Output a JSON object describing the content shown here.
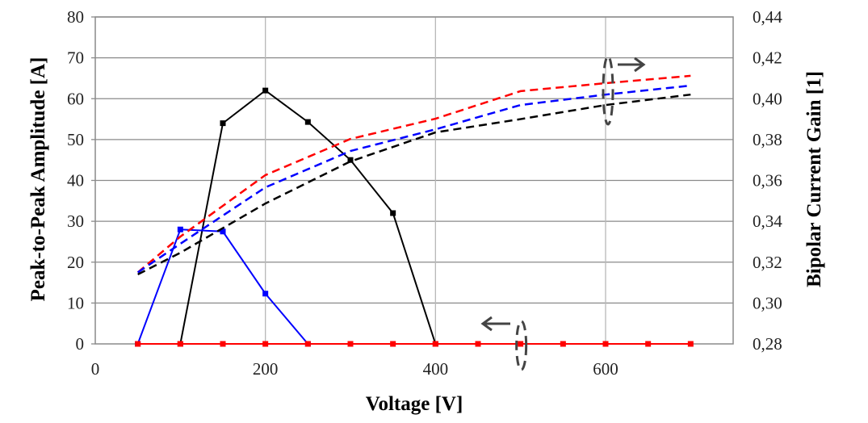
{
  "chart_data": {
    "type": "line",
    "xlabel": "Voltage [V]",
    "ylabel": "Peak-to-Peak Amplitude  [A]",
    "y2label": "Bipolar Current Gain [1]",
    "xlim": [
      0,
      750
    ],
    "ylim": [
      0,
      80
    ],
    "y2lim": [
      0.28,
      0.44
    ],
    "xticks": [
      0,
      200,
      400,
      600
    ],
    "yticks": [
      0,
      10,
      20,
      30,
      40,
      50,
      60,
      70,
      80
    ],
    "y2ticks": [
      "0,28",
      "0,30",
      "0,32",
      "0,34",
      "0,36",
      "0,38",
      "0,40",
      "0,42",
      "0,44"
    ],
    "grid": true,
    "series": [
      {
        "axis": "left",
        "color": "#000000",
        "style": "solid",
        "x": [
          100,
          150,
          200,
          250,
          300,
          350,
          400
        ],
        "y": [
          0,
          54,
          62,
          54.3,
          45,
          32,
          0
        ]
      },
      {
        "axis": "left",
        "color": "#0000ff",
        "style": "solid",
        "x": [
          50,
          100,
          150,
          200,
          250
        ],
        "y": [
          0,
          28,
          27.5,
          12.3,
          0
        ]
      },
      {
        "axis": "left",
        "color": "#ff0000",
        "style": "solid",
        "x": [
          50,
          100,
          150,
          200,
          250,
          300,
          350,
          400,
          450,
          500,
          550,
          600,
          650,
          700
        ],
        "y": [
          0,
          0,
          0,
          0,
          0,
          0,
          0,
          0,
          0,
          0,
          0,
          0,
          0,
          0
        ]
      },
      {
        "axis": "right",
        "color": "#ff0000",
        "style": "dashed",
        "x": [
          50,
          100,
          200,
          300,
          400,
          500,
          600,
          700
        ],
        "y": [
          0.315,
          0.3325,
          0.3626,
          0.3803,
          0.3902,
          0.4037,
          0.4076,
          0.4112
        ]
      },
      {
        "axis": "right",
        "color": "#0000ff",
        "style": "dashed",
        "x": [
          50,
          100,
          200,
          300,
          400,
          500,
          600,
          700
        ],
        "y": [
          0.315,
          0.329,
          0.3566,
          0.3744,
          0.385,
          0.3969,
          0.402,
          0.4064
        ]
      },
      {
        "axis": "right",
        "color": "#000000",
        "style": "dashed",
        "x": [
          50,
          100,
          200,
          300,
          400,
          500,
          600,
          700
        ],
        "y": [
          0.314,
          0.3246,
          0.3487,
          0.3693,
          0.3835,
          0.39,
          0.3969,
          0.402
        ]
      }
    ],
    "annotations": [
      {
        "type": "ellipse-arrow",
        "direction": "right",
        "at_x": 600
      },
      {
        "type": "ellipse-arrow",
        "direction": "left",
        "at_x": 500
      }
    ]
  }
}
